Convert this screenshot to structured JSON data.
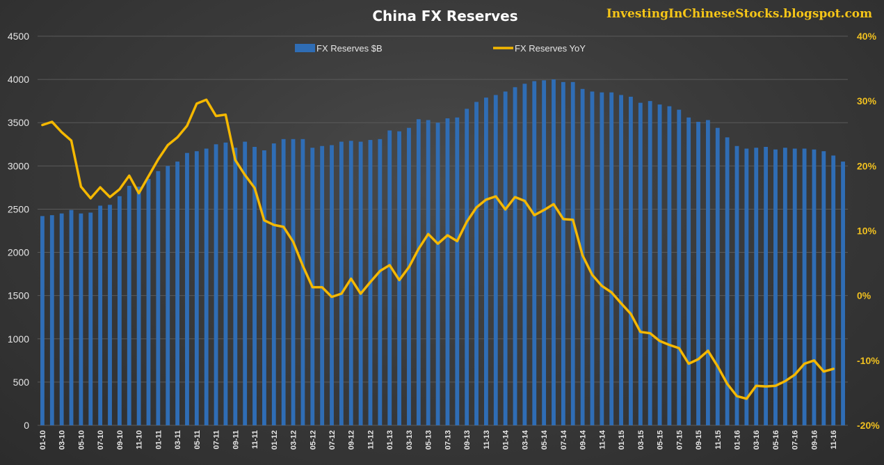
{
  "chart_data": {
    "type": "bar+line",
    "title": "China FX Reserves",
    "watermark": "InvestingInChineseStocks.blogspot.com",
    "colors": {
      "bars": "#2f6db5",
      "line": "#f5b800",
      "right_axis_text": "#f0c020",
      "watermark": "#f5c518"
    },
    "left_axis": {
      "ticks": [
        0,
        500,
        1000,
        1500,
        2000,
        2500,
        3000,
        3500,
        4000,
        4500
      ],
      "ylim": [
        0,
        4500
      ]
    },
    "right_axis": {
      "ticks": [
        "-20%",
        "-10%",
        "0%",
        "10%",
        "20%",
        "30%",
        "40%"
      ],
      "ylim": [
        -20,
        40
      ]
    },
    "x_tick_labels": [
      "01-10",
      "03-10",
      "05-10",
      "07-10",
      "09-10",
      "11-10",
      "01-11",
      "03-11",
      "05-11",
      "07-11",
      "09-11",
      "11-11",
      "01-12",
      "03-12",
      "05-12",
      "07-12",
      "09-12",
      "11-12",
      "01-13",
      "03-13",
      "05-13",
      "07-13",
      "09-13",
      "11-13",
      "01-14",
      "03-14",
      "05-14",
      "07-14",
      "09-14",
      "11-14",
      "01-15",
      "03-15",
      "05-15",
      "07-15",
      "09-15",
      "11-15",
      "01-16",
      "03-16",
      "05-16",
      "07-16",
      "09-16",
      "11-16"
    ],
    "series": [
      {
        "name": "FX Reserves $B",
        "type": "bar",
        "axis": "left",
        "values": [
          2420,
          2430,
          2450,
          2490,
          2450,
          2460,
          2540,
          2550,
          2650,
          2770,
          2760,
          2850,
          2940,
          3000,
          3050,
          3150,
          3170,
          3200,
          3250,
          3270,
          3210,
          3280,
          3220,
          3180,
          3260,
          3310,
          3310,
          3310,
          3210,
          3230,
          3240,
          3280,
          3290,
          3280,
          3300,
          3310,
          3410,
          3400,
          3440,
          3540,
          3530,
          3500,
          3550,
          3560,
          3660,
          3740,
          3790,
          3820,
          3860,
          3910,
          3950,
          3980,
          3990,
          4000,
          3970,
          3970,
          3890,
          3860,
          3850,
          3850,
          3820,
          3800,
          3730,
          3750,
          3710,
          3690,
          3650,
          3560,
          3510,
          3530,
          3440,
          3330,
          3230,
          3200,
          3210,
          3220,
          3190,
          3210,
          3200,
          3200,
          3190,
          3170,
          3120,
          3050
        ]
      },
      {
        "name": "FX Reserves YoY",
        "type": "line",
        "axis": "right",
        "values": [
          26.3,
          26.8,
          25.2,
          23.9,
          16.8,
          15.0,
          16.7,
          15.2,
          16.4,
          18.5,
          15.8,
          18.4,
          21.0,
          23.2,
          24.4,
          26.2,
          29.6,
          30.2,
          27.7,
          27.9,
          20.9,
          18.6,
          16.6,
          11.6,
          10.9,
          10.6,
          8.3,
          4.6,
          1.3,
          1.3,
          -0.2,
          0.3,
          2.6,
          0.3,
          2.1,
          3.8,
          4.7,
          2.4,
          4.4,
          7.2,
          9.5,
          8.0,
          9.3,
          8.4,
          11.4,
          13.6,
          14.8,
          15.3,
          13.3,
          15.2,
          14.6,
          12.4,
          13.2,
          14.1,
          11.8,
          11.7,
          6.2,
          3.2,
          1.5,
          0.5,
          -1.2,
          -2.8,
          -5.6,
          -5.8,
          -7.0,
          -7.6,
          -8.1,
          -10.5,
          -9.8,
          -8.5,
          -10.9,
          -13.6,
          -15.5,
          -15.9,
          -13.9,
          -14.0,
          -13.9,
          -13.2,
          -12.2,
          -10.5,
          -10.0,
          -11.7,
          -11.3
        ]
      }
    ]
  }
}
